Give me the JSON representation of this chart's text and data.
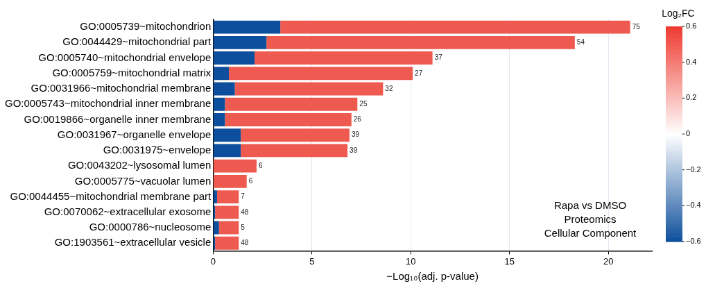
{
  "chart_data": {
    "type": "bar",
    "orientation": "horizontal",
    "stacked": true,
    "categories": [
      "GO:0005739~mitochondrion",
      "GO:0044429~mitochondrial part",
      "GO:0005740~mitochondrial envelope",
      "GO:0005759~mitochondrial matrix",
      "GO:0031966~mitochondrial membrane",
      "GO:0005743~mitochondrial inner membrane",
      "GO:0019866~organelle inner membrane",
      "GO:0031967~organelle envelope",
      "GO:0031975~envelope",
      "GO:0043202~lysosomal lumen",
      "GO:0005775~vacuolar lumen",
      "GO:0044455~mitochondrial membrane part",
      "GO:0070062~extracellular exosome",
      "GO:0000786~nucleosome",
      "GO:1903561~extracellular vesicle"
    ],
    "series": [
      {
        "color": "#0d4f9c",
        "values": [
          3.4,
          2.7,
          2.1,
          0.8,
          1.1,
          0.6,
          0.6,
          1.4,
          1.4,
          0,
          0,
          0.2,
          0.1,
          0.3,
          0.1
        ]
      },
      {
        "color": "#ee5a4f",
        "values": [
          17.7,
          15.6,
          9.0,
          9.3,
          7.5,
          6.7,
          6.4,
          5.5,
          5.4,
          2.2,
          1.7,
          1.1,
          1.2,
          1.0,
          1.2
        ]
      }
    ],
    "xlabel": "−Log₁₀(adj. p-value)",
    "xlim": [
      0,
      22.2
    ],
    "xticks": [
      0,
      5,
      10,
      15,
      20
    ],
    "grid": "x",
    "legend": false,
    "clabel": "Log₂FC",
    "clim": [
      -0.6,
      0.6
    ],
    "cticks": [
      {
        "value": -0.6,
        "label": "−0.6"
      },
      {
        "value": -0.4,
        "label": "−0.4"
      },
      {
        "value": -0.2,
        "label": "−0.2"
      },
      0,
      0.2,
      0.4,
      0.6
    ],
    "annotations": [
      "Rapa vs DMSO",
      "Proteomics",
      "Cellular Component",
      {
        "text": "75",
        "x": 21.1,
        "y": "GO:0005739~mitochondrion"
      },
      {
        "text": "54",
        "x": 18.3,
        "y": "GO:0044429~mitochondrial part"
      },
      {
        "text": "37",
        "x": 11.1,
        "y": "GO:0005740~mitochondrial envelope"
      },
      {
        "text": "27",
        "x": 10.1,
        "y": "GO:0005759~mitochondrial matrix"
      },
      {
        "text": "32",
        "x": 8.6,
        "y": "GO:0031966~mitochondrial membrane"
      },
      {
        "text": "25",
        "x": 7.3,
        "y": "GO:0005743~mitochondrial inner membrane"
      },
      {
        "text": "26",
        "x": 7.0,
        "y": "GO:0019866~organelle inner membrane"
      },
      {
        "text": "39",
        "x": 6.9,
        "y": "GO:0031967~organelle envelope"
      },
      {
        "text": "39",
        "x": 6.8,
        "y": "GO:0031975~envelope"
      },
      {
        "text": "6",
        "x": 2.2,
        "y": "GO:0043202~lysosomal lumen"
      },
      {
        "text": "6",
        "x": 1.7,
        "y": "GO:0005775~vacuolar lumen"
      },
      {
        "text": "7",
        "x": 1.3,
        "y": "GO:0044455~mitochondrial membrane part"
      },
      {
        "text": "48",
        "x": 1.3,
        "y": "GO:0070062~extracellular exosome"
      },
      {
        "text": "5",
        "x": 1.3,
        "y": "GO:0000786~nucleosome"
      },
      {
        "text": "48",
        "x": 1.3,
        "y": "GO:1903561~extracellular vesicle"
      }
    ]
  }
}
